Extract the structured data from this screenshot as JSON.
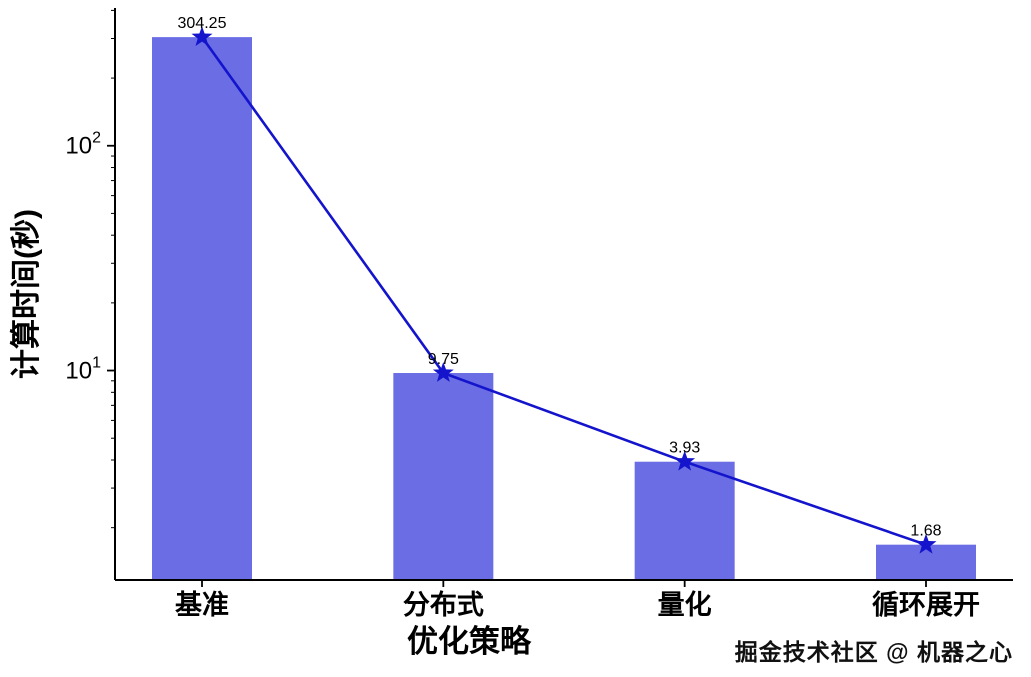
{
  "chart_data": {
    "type": "bar",
    "overlay": "line",
    "categories": [
      "基准",
      "分布式",
      "量化",
      "循环展开"
    ],
    "values": [
      304.25,
      9.75,
      3.93,
      1.68
    ],
    "value_labels": [
      "304.25",
      "9.75",
      "3.93",
      "1.68"
    ],
    "title": "",
    "xlabel": "优化策略",
    "ylabel": "计算时间(秒)",
    "yscale": "log",
    "ylim": [
      1.17,
      410
    ],
    "yticks": [
      {
        "value": 10,
        "base": "10",
        "exp": "1"
      },
      {
        "value": 100,
        "base": "10",
        "exp": "2"
      }
    ],
    "grid": false,
    "legend": "none",
    "bar_color": "#6a6de4",
    "line_color": "#1414cc",
    "marker": "star",
    "axis_color": "#000000",
    "label_color": "#000000"
  },
  "watermark": "掘金技术社区 @ 机器之心"
}
